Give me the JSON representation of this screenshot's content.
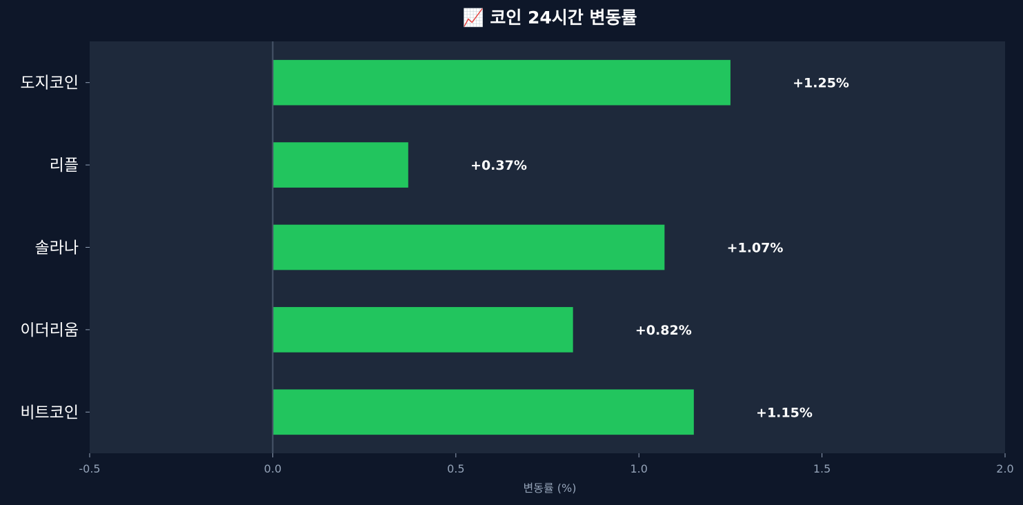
{
  "chart_data": {
    "type": "bar",
    "orientation": "horizontal",
    "title": "📈 코인 24시간 변동률",
    "xlabel": "변동률 (%)",
    "ylabel": "",
    "categories": [
      "비트코인",
      "이더리움",
      "솔라나",
      "리플",
      "도지코인"
    ],
    "values": [
      1.15,
      0.82,
      1.07,
      0.37,
      1.25
    ],
    "value_labels": [
      "+1.15%",
      "+0.82%",
      "+1.07%",
      "+0.37%",
      "+1.25%"
    ],
    "xlim": [
      -0.5,
      2.0
    ],
    "xticks": [
      -0.5,
      0.0,
      0.5,
      1.0,
      1.5,
      2.0
    ],
    "xtick_labels": [
      "-0.5",
      "0.0",
      "0.5",
      "1.0",
      "1.5",
      "2.0"
    ],
    "grid": false,
    "colors": {
      "background": "#0e1729",
      "plot_background": "#1e293b",
      "bar": "#22c55e",
      "zero_line": "#475569",
      "text": "#ffffff",
      "muted_text": "#94a3b8"
    }
  }
}
